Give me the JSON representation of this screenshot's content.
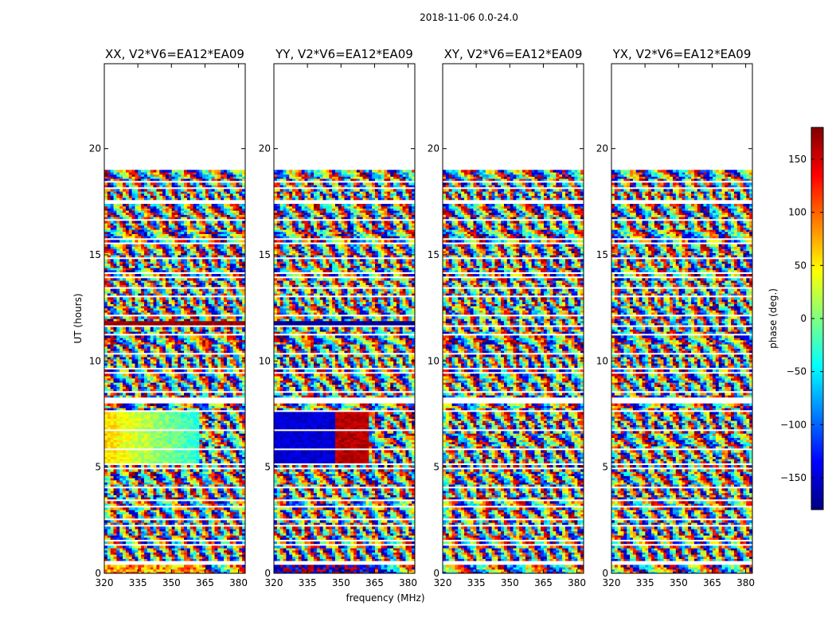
{
  "chart_data": {
    "type": "heatmap",
    "title": "2018-11-06 0.0-24.0",
    "xlabel": "frequency (MHz)",
    "ylabel": "UT (hours)",
    "xlim": [
      320,
      383
    ],
    "ylim": [
      0,
      24
    ],
    "xticks": [
      320,
      335,
      350,
      365,
      380
    ],
    "yticks": [
      0,
      5,
      10,
      15,
      20
    ],
    "data_time_range": [
      0,
      19
    ],
    "colormap": "jet",
    "colorbar": {
      "label": "phase (deg.)",
      "range": [
        -180,
        180
      ],
      "ticks": [
        150,
        100,
        50,
        0,
        -50,
        -100,
        -150
      ],
      "tick_labels": [
        "150",
        "100",
        "50",
        "0",
        "−50",
        "−100",
        "−150"
      ]
    },
    "panels": [
      {
        "title": "XX, V2*V6=EA12*EA09"
      },
      {
        "title": "YY, V2*V6=EA12*EA09"
      },
      {
        "title": "XY, V2*V6=EA12*EA09"
      },
      {
        "title": "YX, V2*V6=EA12*EA09"
      }
    ],
    "flagged_time_ranges_hours": [
      [
        0.45,
        0.55
      ],
      [
        1.45,
        1.6
      ],
      [
        2.45,
        2.6
      ],
      [
        3.4,
        3.45
      ],
      [
        5.05,
        5.15
      ],
      [
        7.6,
        7.7
      ],
      [
        8.0,
        8.25
      ],
      [
        9.6,
        9.7
      ],
      [
        11.55,
        11.65
      ],
      [
        13.4,
        13.5
      ],
      [
        14.05,
        14.2
      ],
      [
        15.5,
        15.6
      ],
      [
        17.35,
        17.45
      ],
      [
        18.1,
        18.2
      ]
    ]
  }
}
